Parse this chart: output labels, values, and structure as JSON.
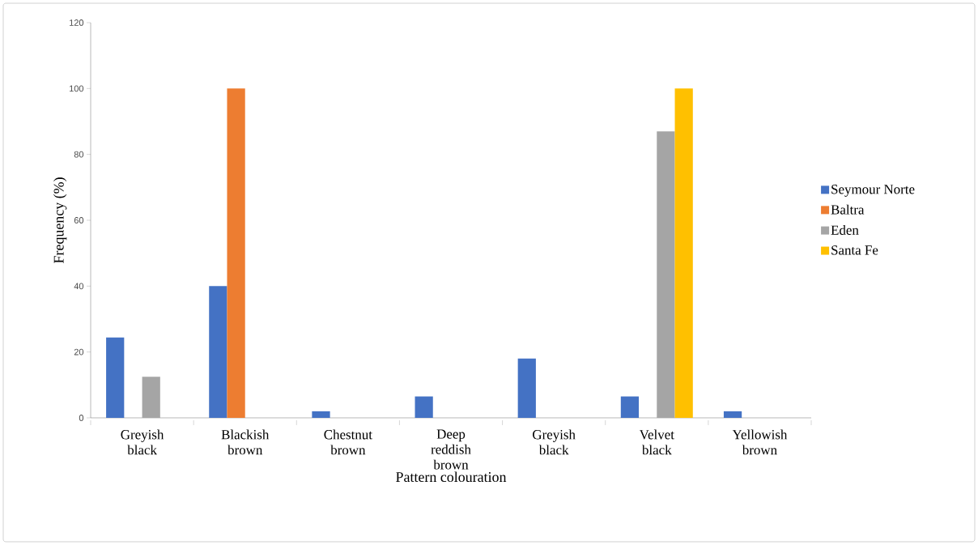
{
  "chart_data": {
    "type": "bar",
    "xlabel": "Pattern colouration",
    "ylabel": "Frequency (%)",
    "categories": [
      "Greyish black",
      "Blackish brown",
      "Chestnut brown",
      "Deep reddish brown",
      "Greyish black",
      "Velvet black",
      "Yellowish brown"
    ],
    "series": [
      {
        "name": "Seymour Norte",
        "color": "#4472c4",
        "values": [
          24.4,
          40,
          2,
          6.5,
          18,
          6.5,
          2
        ]
      },
      {
        "name": "Baltra",
        "color": "#ed7d31",
        "values": [
          0,
          100,
          0,
          0,
          0,
          0,
          0
        ]
      },
      {
        "name": "Eden",
        "color": "#a5a5a5",
        "values": [
          12.5,
          0,
          0,
          0,
          0,
          87,
          0
        ]
      },
      {
        "name": "Santa Fe",
        "color": "#ffc000",
        "values": [
          0,
          0,
          0,
          0,
          0,
          100,
          0
        ]
      }
    ],
    "ylim": [
      0,
      120
    ],
    "yticks": [
      0,
      20,
      40,
      60,
      80,
      100,
      120
    ],
    "legend": "right",
    "grid": false
  }
}
